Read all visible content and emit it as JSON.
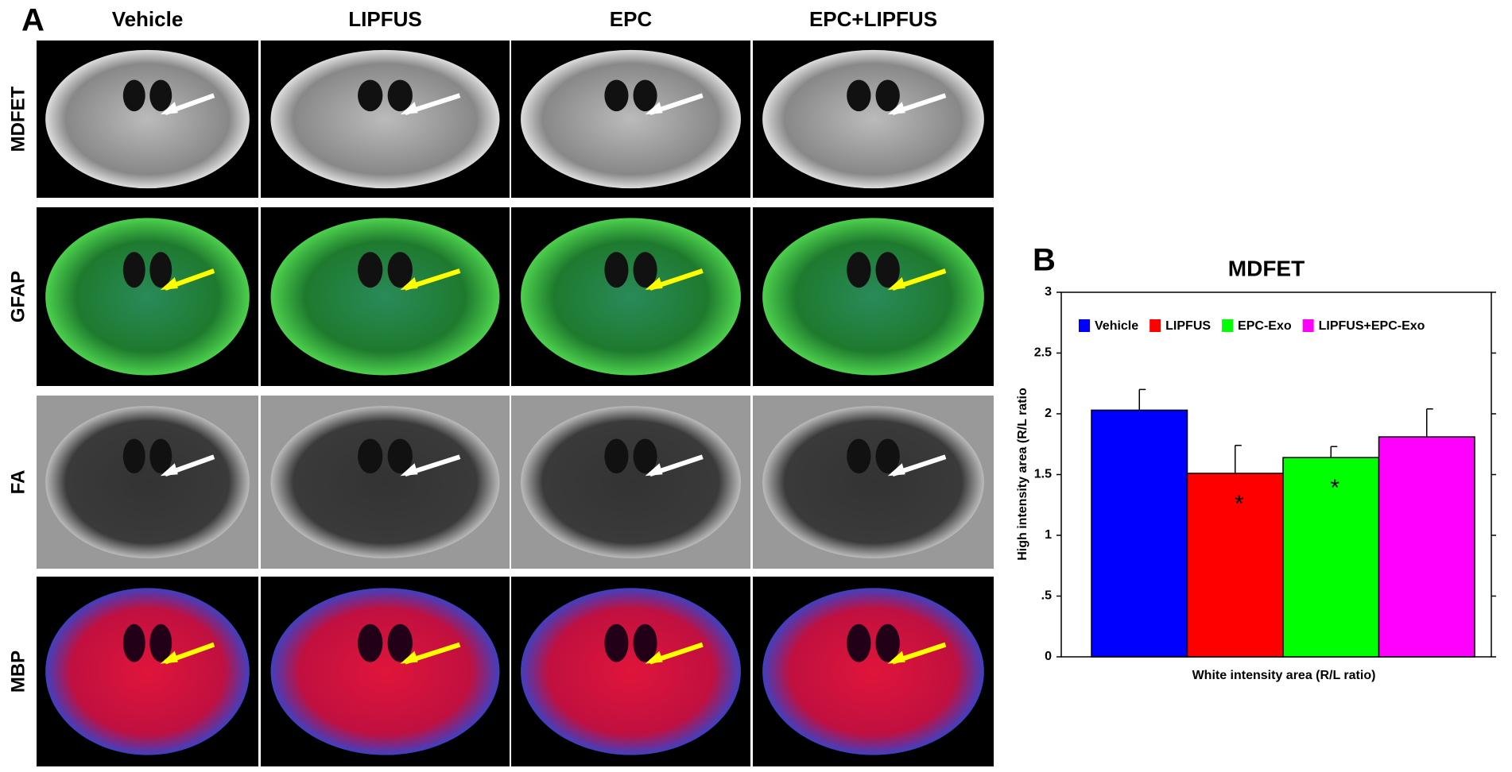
{
  "panel_a": {
    "label": "A",
    "columns": [
      "Vehicle",
      "LIPFUS",
      "EPC",
      "EPC+LIPFUS"
    ],
    "rows": [
      "MDFET",
      "GFAP",
      "FA",
      "MBP"
    ]
  },
  "chart_data": {
    "type": "bar",
    "panel_label": "B",
    "title": "MDFET",
    "x_label": "White intensity area (R/L ratio)",
    "y_label": "High intensity area (R/L ratio",
    "ylim": [
      0,
      3
    ],
    "yticks": [
      0,
      {
        "value": 0.5,
        "label": ".5"
      },
      1,
      1.5,
      2,
      2.5,
      3
    ],
    "series": [
      {
        "name": "Vehicle",
        "color": "#0000ff",
        "values": [
          2.03
        ],
        "errors": [
          0.17
        ]
      },
      {
        "name": "LIPFUS",
        "color": "#ff0000",
        "values": [
          1.51
        ],
        "errors": [
          0.23
        ],
        "annotations": [
          "*"
        ]
      },
      {
        "name": "EPC-Exo",
        "color": "#00ff00",
        "values": [
          1.64
        ],
        "errors": [
          0.09
        ],
        "annotations": [
          "*"
        ]
      },
      {
        "name": "LIPFUS+EPC-Exo",
        "color": "#ff00ff",
        "values": [
          1.81
        ],
        "errors": [
          0.23
        ]
      }
    ]
  }
}
